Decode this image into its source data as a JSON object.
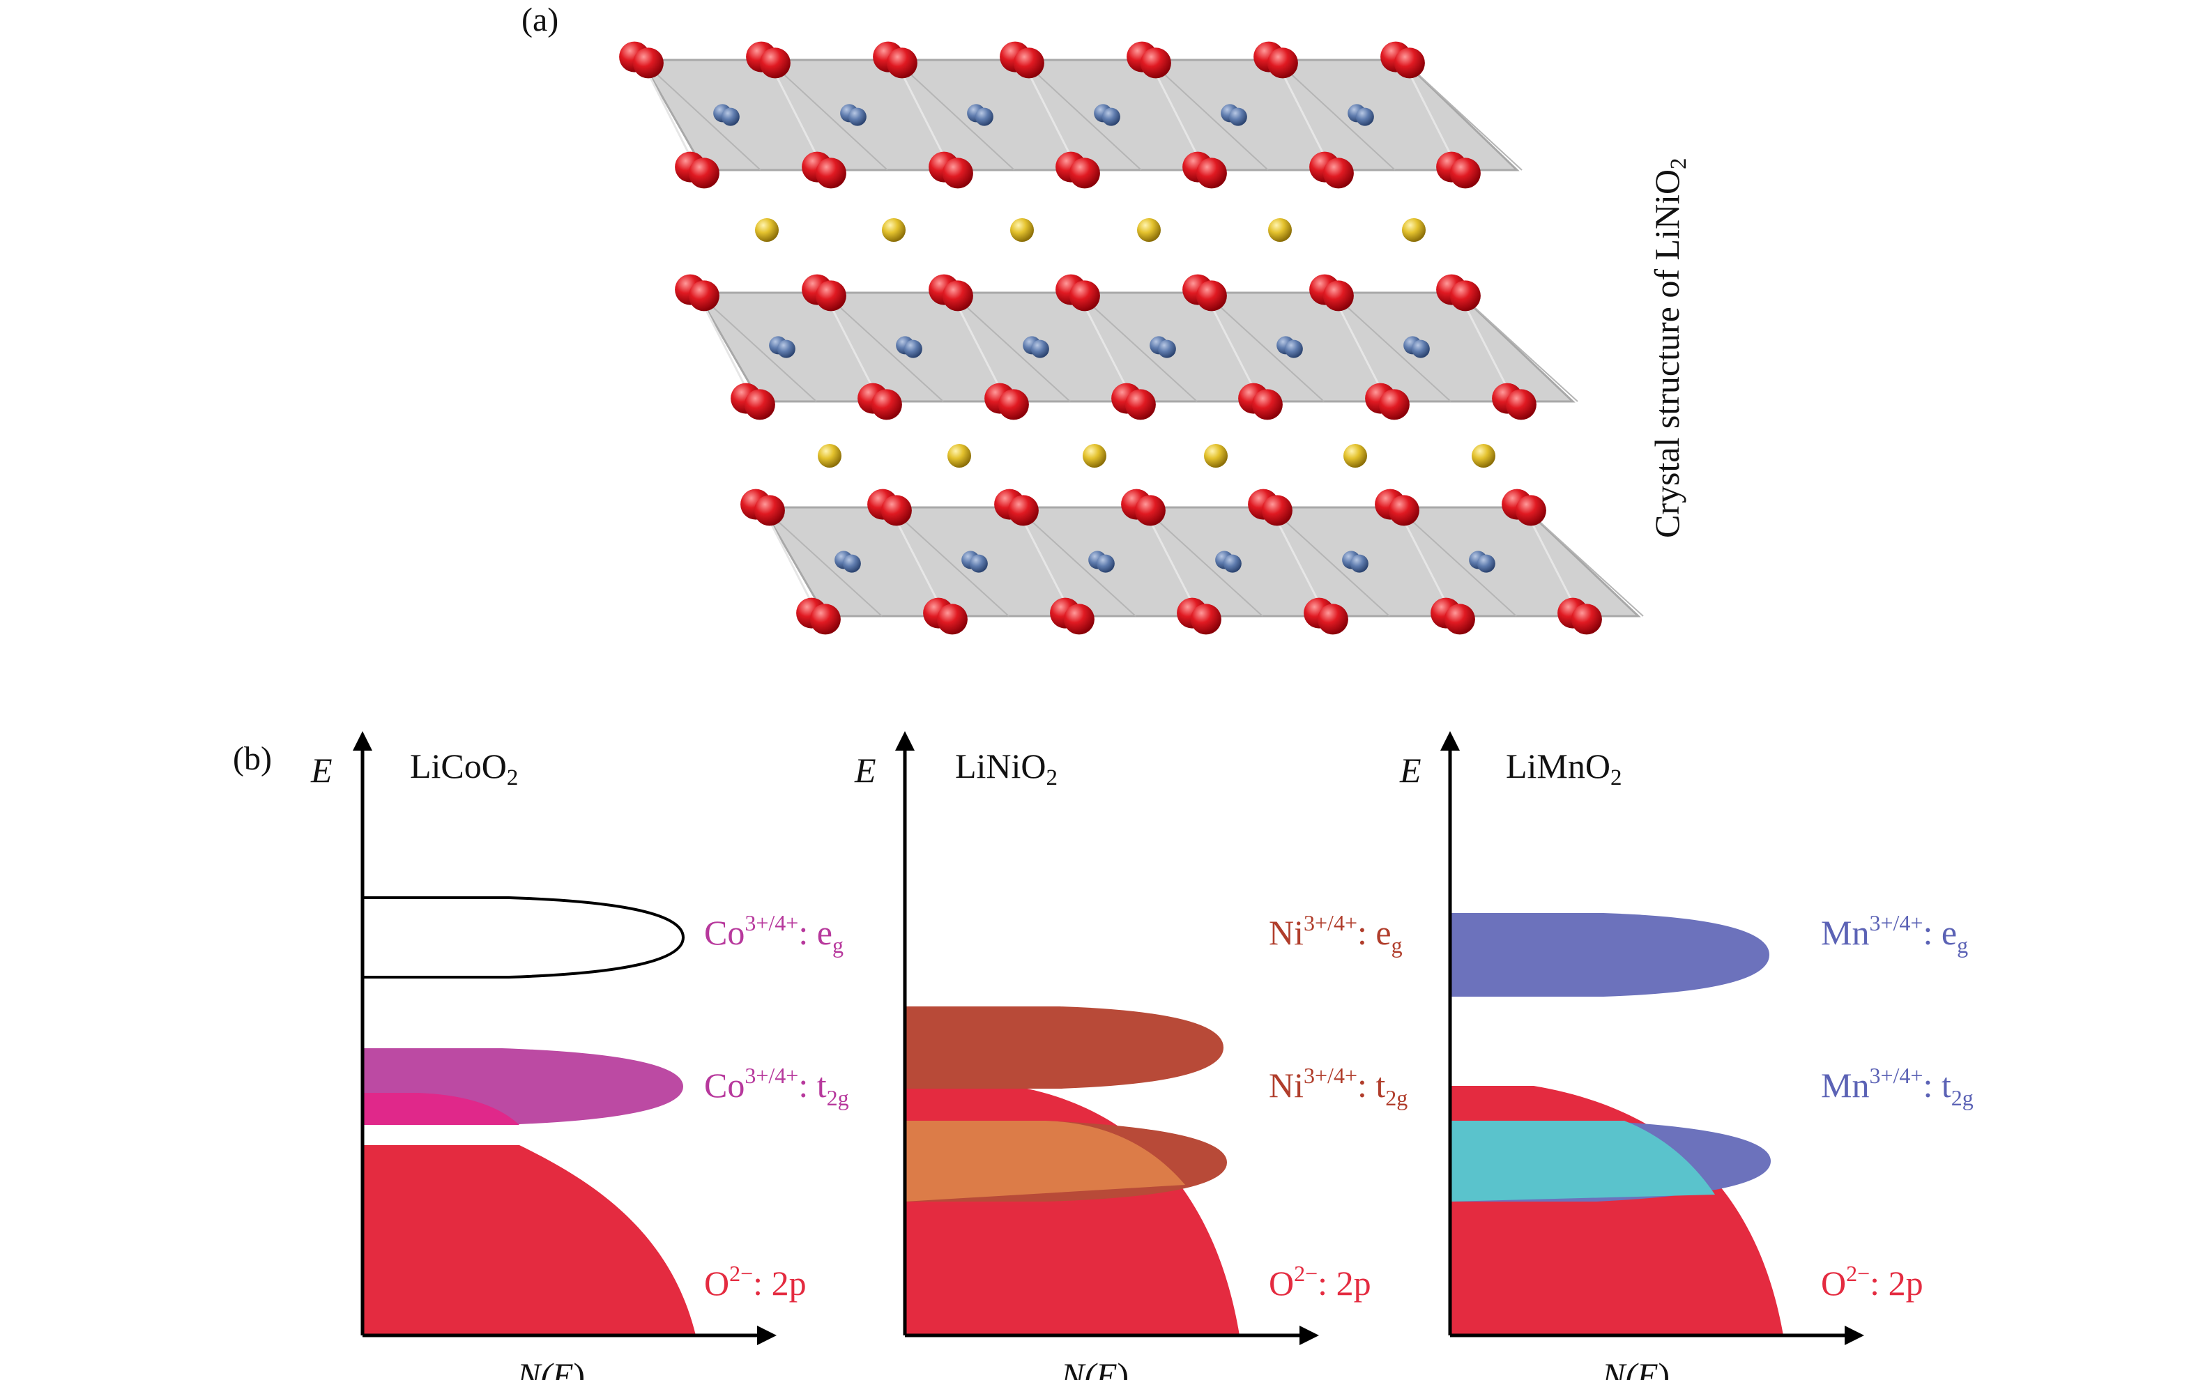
{
  "panel_a": {
    "label": "(a)",
    "caption": "Crystal structure of LiNiO",
    "caption_sub": "2"
  },
  "panel_b": {
    "label": "(b)",
    "axis_y": "E",
    "axis_x_pre": "N(",
    "axis_x_var": "E",
    "axis_x_post": ")",
    "diagrams": [
      {
        "title_main": "LiCoO",
        "title_sub": "2",
        "bands": [
          {
            "ion": "Co",
            "sup": "3+/4+",
            "orb": "e",
            "orb_sub": "g",
            "color": "#b7389c"
          },
          {
            "ion": "Co",
            "sup": "3+/4+",
            "orb": "t",
            "orb_sub": "2g",
            "color": "#b7389c"
          },
          {
            "ion": "O",
            "sup": "2−",
            "orb": "2p",
            "orb_sub": "",
            "color": "#e42b40"
          }
        ]
      },
      {
        "title_main": "LiNiO",
        "title_sub": "2",
        "bands": [
          {
            "ion": "Ni",
            "sup": "3+/4+",
            "orb": "e",
            "orb_sub": "g",
            "color": "#b03d2b"
          },
          {
            "ion": "Ni",
            "sup": "3+/4+",
            "orb": "t",
            "orb_sub": "2g",
            "color": "#b03d2b"
          },
          {
            "ion": "O",
            "sup": "2−",
            "orb": "2p",
            "orb_sub": "",
            "color": "#e42b40"
          }
        ]
      },
      {
        "title_main": "LiMnO",
        "title_sub": "2",
        "bands": [
          {
            "ion": "Mn",
            "sup": "3+/4+",
            "orb": "e",
            "orb_sub": "g",
            "color": "#5b62b5"
          },
          {
            "ion": "Mn",
            "sup": "3+/4+",
            "orb": "t",
            "orb_sub": "2g",
            "color": "#5b62b5"
          },
          {
            "ion": "O",
            "sup": "2−",
            "orb": "2p",
            "orb_sub": "",
            "color": "#e42b40"
          }
        ]
      }
    ]
  },
  "colors": {
    "oxygen": "#d8101c",
    "metal": "#5a78a8",
    "lithium": "#e3c12c",
    "slab": "#c9c9c9",
    "o2p_band": "#e42b40",
    "co_t2g": "#bc4aa3",
    "co_overlap": "#e0288a",
    "ni_band": "#b84a38",
    "ni_overlap": "#dc7c48",
    "mn_band": "#6c72bc",
    "mn_overlap": "#5ac3cc"
  }
}
